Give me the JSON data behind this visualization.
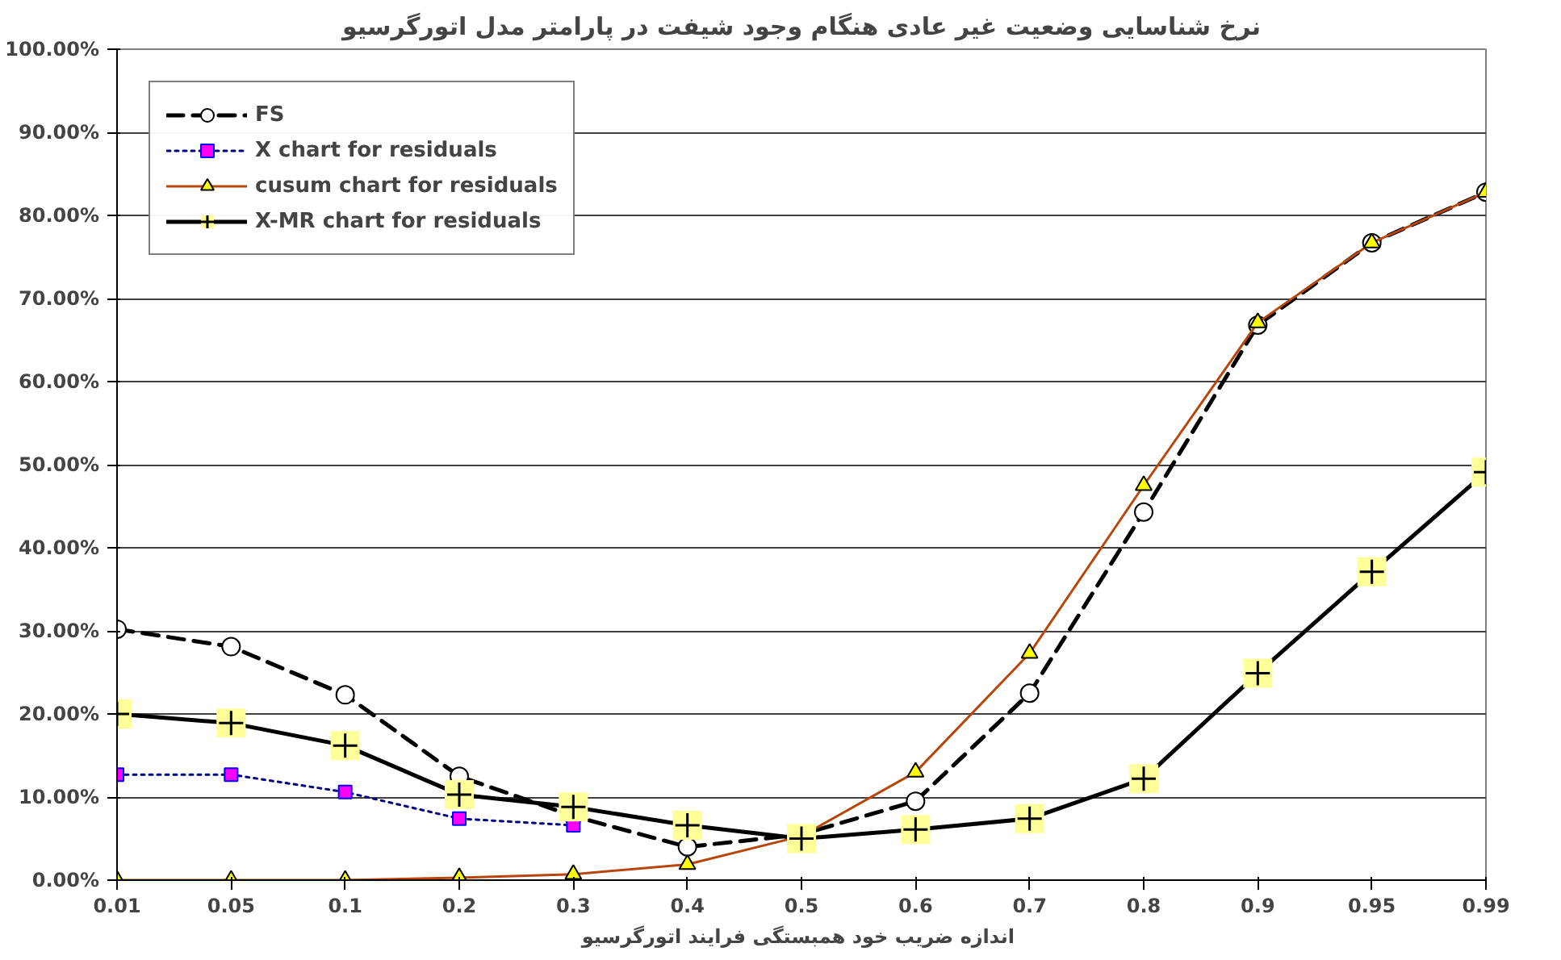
{
  "chart_data": {
    "type": "line",
    "title": "نرخ شناسایی وضعیت غیر عادی هنگام وجود شیفت در پارامتر مدل اتورگرسیو",
    "xlabel": "اندازه ضریب خود همبستگی  فرایند اتورگرسیو",
    "categories": [
      "0.01",
      "0.05",
      "0.1",
      "0.2",
      "0.3",
      "0.4",
      "0.5",
      "0.6",
      "0.7",
      "0.8",
      "0.9",
      "0.95",
      "0.99"
    ],
    "ylim": [
      0,
      100
    ],
    "yticks": [
      {
        "value": 0,
        "label": "0.00%"
      },
      {
        "value": 10,
        "label": "10.00%"
      },
      {
        "value": 20,
        "label": "20.00%"
      },
      {
        "value": 30,
        "label": "30.00%"
      },
      {
        "value": 40,
        "label": "40.00%"
      },
      {
        "value": 50,
        "label": "50.00%"
      },
      {
        "value": 60,
        "label": "60.00%"
      },
      {
        "value": 70,
        "label": "70.00%"
      },
      {
        "value": 80,
        "label": "80.00%"
      },
      {
        "value": 90,
        "label": "90.00%"
      },
      {
        "value": 100,
        "label": "100.00%"
      }
    ],
    "grid": "y",
    "legend": "top left",
    "series": [
      {
        "name": "FS",
        "color": "#000000",
        "line_style": "dashed",
        "marker": "circle",
        "values": [
          30.2,
          28.1,
          22.3,
          12.5,
          7.7,
          4.0,
          5.5,
          9.5,
          22.5,
          44.3,
          66.8,
          76.7,
          82.8
        ]
      },
      {
        "name": "X chart for residuals",
        "color": "#000080",
        "line_style": "dotted",
        "marker": "square",
        "values": [
          12.7,
          12.7,
          10.6,
          7.4,
          6.6,
          null,
          null,
          null,
          null,
          null,
          null,
          null,
          null
        ]
      },
      {
        "name": "cusum chart for residuals",
        "color": "#b8460b",
        "line_style": "solid",
        "marker": "triangle",
        "values": [
          0,
          0,
          0,
          0.3,
          0.7,
          1.9,
          5.3,
          13.0,
          27.3,
          47.5,
          67.1,
          76.7,
          82.8
        ]
      },
      {
        "name": "X-MR chart for residuals",
        "color": "#000000",
        "line_style": "solid",
        "marker": "cross",
        "values": [
          20.0,
          18.9,
          16.2,
          10.3,
          8.8,
          6.6,
          5.0,
          6.1,
          7.4,
          12.2,
          24.9,
          37.1,
          49.1
        ]
      }
    ]
  }
}
